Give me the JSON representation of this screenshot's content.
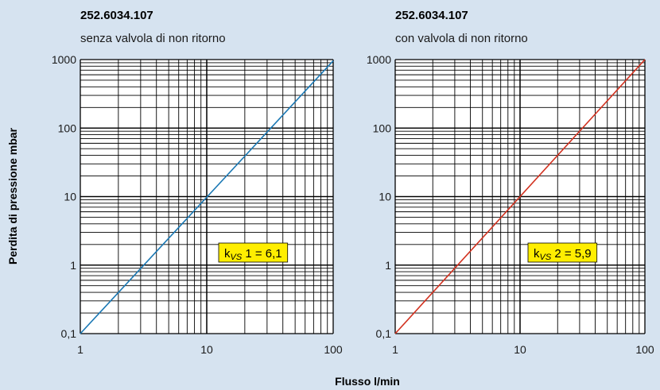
{
  "chart_data": [
    {
      "type": "line",
      "title": "252.6034.107",
      "subtitle": "senza valvola di non ritorno",
      "x_scale": "log",
      "y_scale": "log",
      "xlim": [
        1,
        100
      ],
      "ylim": [
        0.1,
        1000
      ],
      "x_ticks": [
        "1",
        "10",
        "100"
      ],
      "y_ticks": [
        "0,1",
        "1",
        "10",
        "100",
        "1000"
      ],
      "grid": true,
      "series": [
        {
          "x": [
            1,
            100
          ],
          "y": [
            0.1,
            960
          ],
          "color": "#1a78b4"
        }
      ],
      "annotation": {
        "k": "k",
        "sub": "VS",
        "text": " 1 = 6,1"
      }
    },
    {
      "type": "line",
      "title": "252.6034.107",
      "subtitle": "con valvola di non ritorno",
      "x_scale": "log",
      "y_scale": "log",
      "xlim": [
        1,
        100
      ],
      "ylim": [
        0.1,
        1000
      ],
      "x_ticks": [
        "1",
        "10",
        "100"
      ],
      "y_ticks": [
        "0,1",
        "1",
        "10",
        "100",
        "1000"
      ],
      "grid": true,
      "series": [
        {
          "x": [
            1,
            100
          ],
          "y": [
            0.1,
            1000
          ],
          "color": "#d2311f"
        }
      ],
      "annotation": {
        "k": "k",
        "sub": "VS",
        "text": " 2 = 5,9"
      }
    }
  ],
  "ylabel": "Perdita di pressione  mbar",
  "xlabel": "Flusso  l/min",
  "colors": {
    "background": "#d6e3f0",
    "plot_bg": "#ffffff",
    "grid": "#000000",
    "annotation_bg": "#ffee00"
  }
}
